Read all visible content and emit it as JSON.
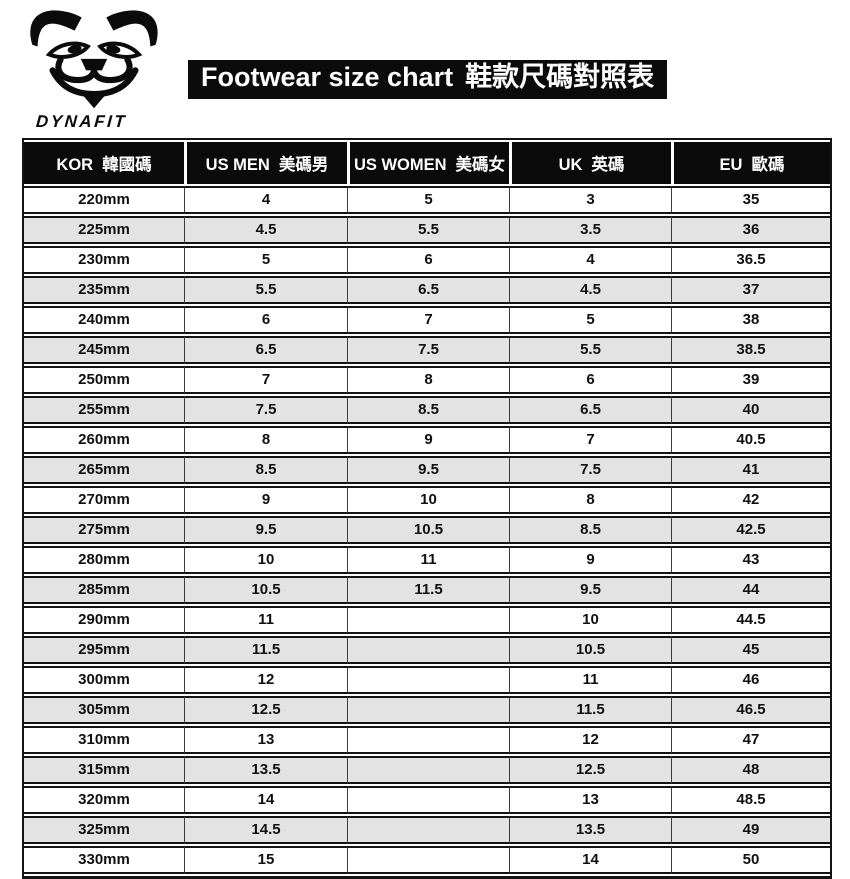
{
  "logo": {
    "brand": "DYNAFIT"
  },
  "title": {
    "en": "Footwear size chart",
    "zh": "鞋款尺碼對照表"
  },
  "table": {
    "headers": [
      {
        "en": "KOR",
        "zh": "韓國碼"
      },
      {
        "en": "US MEN",
        "zh": "美碼男"
      },
      {
        "en": "US WOMEN",
        "zh": "美碼女"
      },
      {
        "en": "UK",
        "zh": "英碼"
      },
      {
        "en": "EU",
        "zh": "歐碼"
      }
    ],
    "rows": [
      [
        "220mm",
        "4",
        "5",
        "3",
        "35"
      ],
      [
        "225mm",
        "4.5",
        "5.5",
        "3.5",
        "36"
      ],
      [
        "230mm",
        "5",
        "6",
        "4",
        "36.5"
      ],
      [
        "235mm",
        "5.5",
        "6.5",
        "4.5",
        "37"
      ],
      [
        "240mm",
        "6",
        "7",
        "5",
        "38"
      ],
      [
        "245mm",
        "6.5",
        "7.5",
        "5.5",
        "38.5"
      ],
      [
        "250mm",
        "7",
        "8",
        "6",
        "39"
      ],
      [
        "255mm",
        "7.5",
        "8.5",
        "6.5",
        "40"
      ],
      [
        "260mm",
        "8",
        "9",
        "7",
        "40.5"
      ],
      [
        "265mm",
        "8.5",
        "9.5",
        "7.5",
        "41"
      ],
      [
        "270mm",
        "9",
        "10",
        "8",
        "42"
      ],
      [
        "275mm",
        "9.5",
        "10.5",
        "8.5",
        "42.5"
      ],
      [
        "280mm",
        "10",
        "11",
        "9",
        "43"
      ],
      [
        "285mm",
        "10.5",
        "11.5",
        "9.5",
        "44"
      ],
      [
        "290mm",
        "11",
        "",
        "10",
        "44.5"
      ],
      [
        "295mm",
        "11.5",
        "",
        "10.5",
        "45"
      ],
      [
        "300mm",
        "12",
        "",
        "11",
        "46"
      ],
      [
        "305mm",
        "12.5",
        "",
        "11.5",
        "46.5"
      ],
      [
        "310mm",
        "13",
        "",
        "12",
        "47"
      ],
      [
        "315mm",
        "13.5",
        "",
        "12.5",
        "48"
      ],
      [
        "320mm",
        "14",
        "",
        "13",
        "48.5"
      ],
      [
        "325mm",
        "14.5",
        "",
        "13.5",
        "49"
      ],
      [
        "330mm",
        "15",
        "",
        "14",
        "50"
      ]
    ]
  },
  "colors": {
    "header_bg": "#0b0b0b",
    "row_alt_bg": "#e3e3e3",
    "row_border": "#141414",
    "column_divider": "#3c3c3c",
    "title_bg": "#0b0b0b",
    "title_text": "#ffffff"
  }
}
